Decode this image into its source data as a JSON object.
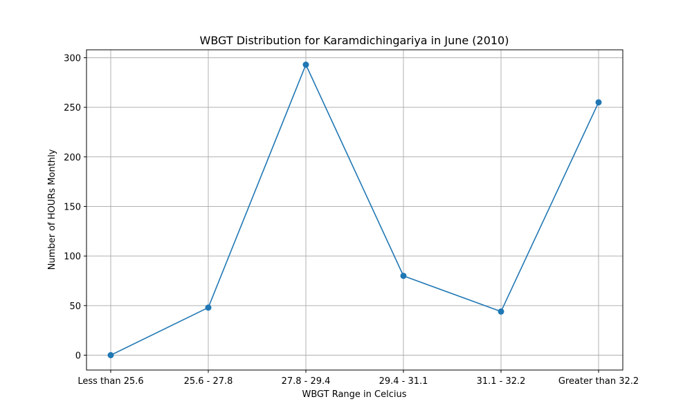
{
  "chart_data": {
    "type": "line",
    "title": "WBGT Distribution for Karamdichingariya in June (2010)",
    "xlabel": "WBGT Range in Celcius",
    "ylabel": "Number of HOURs Monthly",
    "categories": [
      "Less than 25.6",
      "25.6 - 27.8",
      "27.8 - 29.4",
      "29.4 - 31.1",
      "31.1 - 32.2",
      "Greater than 32.2"
    ],
    "series": [
      {
        "values": [
          0,
          48,
          293,
          80,
          44,
          255
        ]
      }
    ],
    "ylim": [
      -15,
      308
    ],
    "yticks": [
      0,
      50,
      100,
      150,
      200,
      250,
      300
    ],
    "grid": true,
    "colors": {
      "line": "#1f77b4",
      "grid": "#b0b0b0",
      "axes": "#000000"
    }
  }
}
